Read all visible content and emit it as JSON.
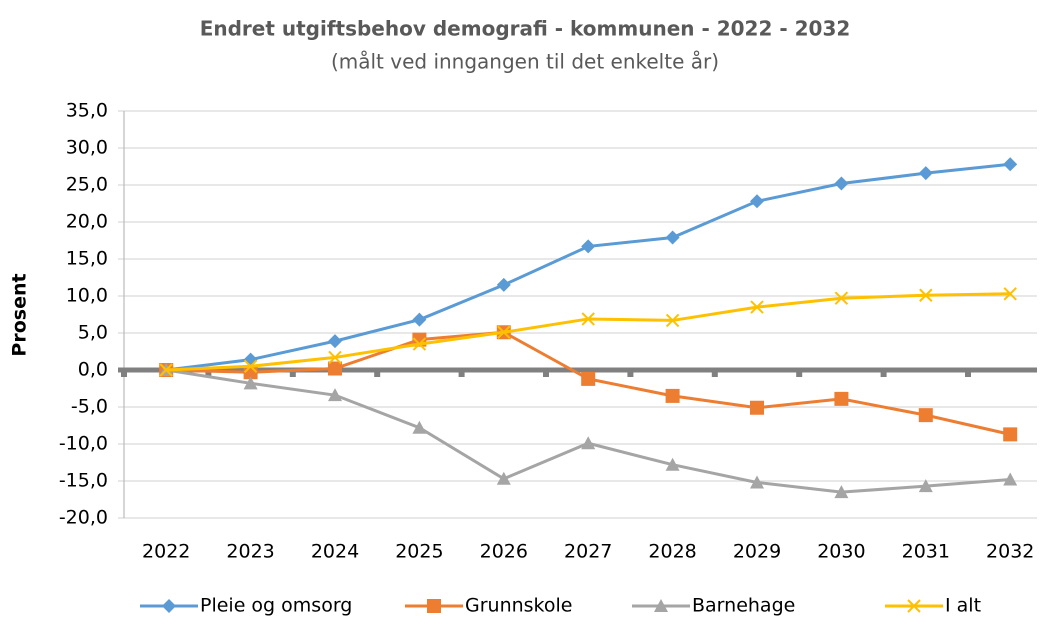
{
  "chart_data": {
    "type": "line",
    "title": "Endret utgiftsbehov demografi - kommunen - 2022 - 2032",
    "subtitle": "(målt ved inngangen til det enkelte år)",
    "y_label": "Prosent",
    "categories": [
      "2022",
      "2023",
      "2024",
      "2025",
      "2026",
      "2027",
      "2028",
      "2029",
      "2030",
      "2031",
      "2032"
    ],
    "series": [
      {
        "name": "Pleie og omsorg",
        "color": "#5b9bd5",
        "marker": "diamond",
        "values": [
          0,
          1.4,
          3.9,
          6.8,
          11.5,
          16.7,
          17.9,
          22.8,
          25.2,
          26.6,
          27.8
        ]
      },
      {
        "name": "Grunnskole",
        "color": "#ed7d31",
        "marker": "square",
        "values": [
          0,
          -0.3,
          0.2,
          4.1,
          5.1,
          -1.2,
          -3.5,
          -5.1,
          -3.9,
          -6.1,
          -8.7
        ]
      },
      {
        "name": "Barnehage",
        "color": "#a5a5a5",
        "marker": "triangle",
        "values": [
          0,
          -1.8,
          -3.4,
          -7.8,
          -14.7,
          -9.9,
          -12.8,
          -15.2,
          -16.5,
          -15.7,
          -14.8
        ]
      },
      {
        "name": "I alt",
        "color": "#ffc000",
        "marker": "x",
        "values": [
          0,
          0.5,
          1.7,
          3.5,
          5.1,
          6.9,
          6.7,
          8.5,
          9.7,
          10.1,
          10.3
        ]
      }
    ],
    "ylim": [
      -20,
      35
    ],
    "yticks": [
      {
        "value": -20,
        "label": "-20,0"
      },
      {
        "value": -15,
        "label": "-15,0"
      },
      {
        "value": -10,
        "label": "-10,0"
      },
      {
        "value": -5,
        "label": "-5,0"
      },
      {
        "value": 0,
        "label": "0,0"
      },
      {
        "value": 5,
        "label": "5,0"
      },
      {
        "value": 10,
        "label": "10,0"
      },
      {
        "value": 15,
        "label": "15,0"
      },
      {
        "value": 20,
        "label": "20,0"
      },
      {
        "value": 25,
        "label": "25,0"
      },
      {
        "value": 30,
        "label": "30,0"
      },
      {
        "value": 35,
        "label": "35,0"
      }
    ],
    "grid": true,
    "legend": "bottom"
  }
}
